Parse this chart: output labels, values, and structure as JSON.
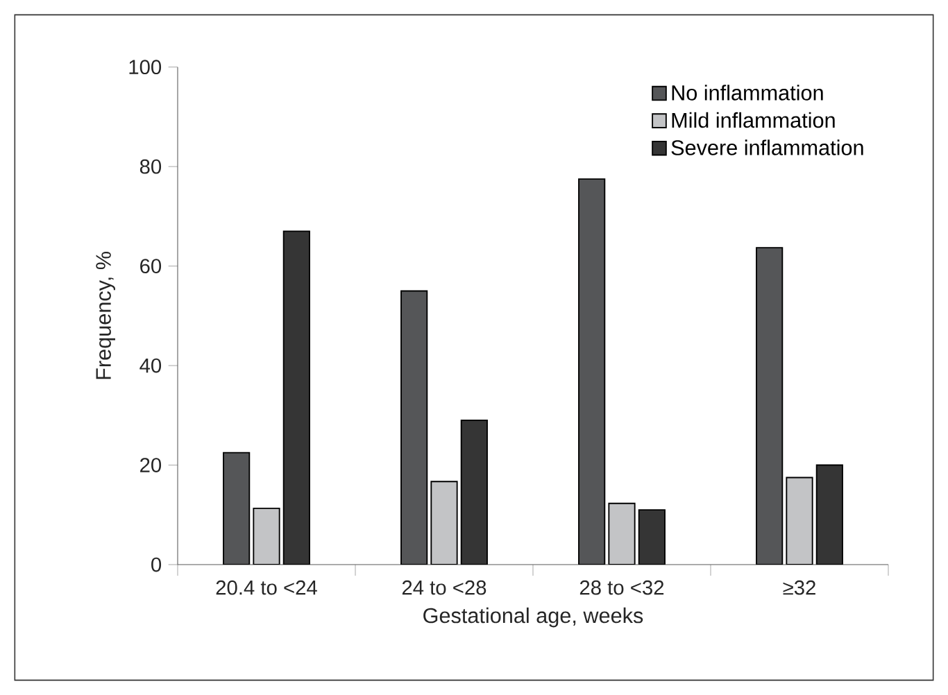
{
  "chart_data": {
    "type": "bar",
    "xlabel": "Gestational age, weeks",
    "ylabel": "Frequency, %",
    "categories": [
      "20.4 to <24",
      "24 to <28",
      "28 to <32",
      "≥32"
    ],
    "series": [
      {
        "name": "No inflammation",
        "color": "#555658",
        "values": [
          22.5,
          55,
          77.5,
          63.7
        ]
      },
      {
        "name": "Mild inflammation",
        "color": "#c3c4c6",
        "values": [
          11.3,
          16.7,
          12.3,
          17.5
        ]
      },
      {
        "name": "Severe inflammation",
        "color": "#353535",
        "values": [
          67,
          29,
          11,
          20
        ]
      }
    ],
    "ylim": [
      0,
      100
    ],
    "yticks": [
      0,
      20,
      40,
      60,
      80,
      100
    ],
    "grid": false,
    "legend": "top right"
  }
}
